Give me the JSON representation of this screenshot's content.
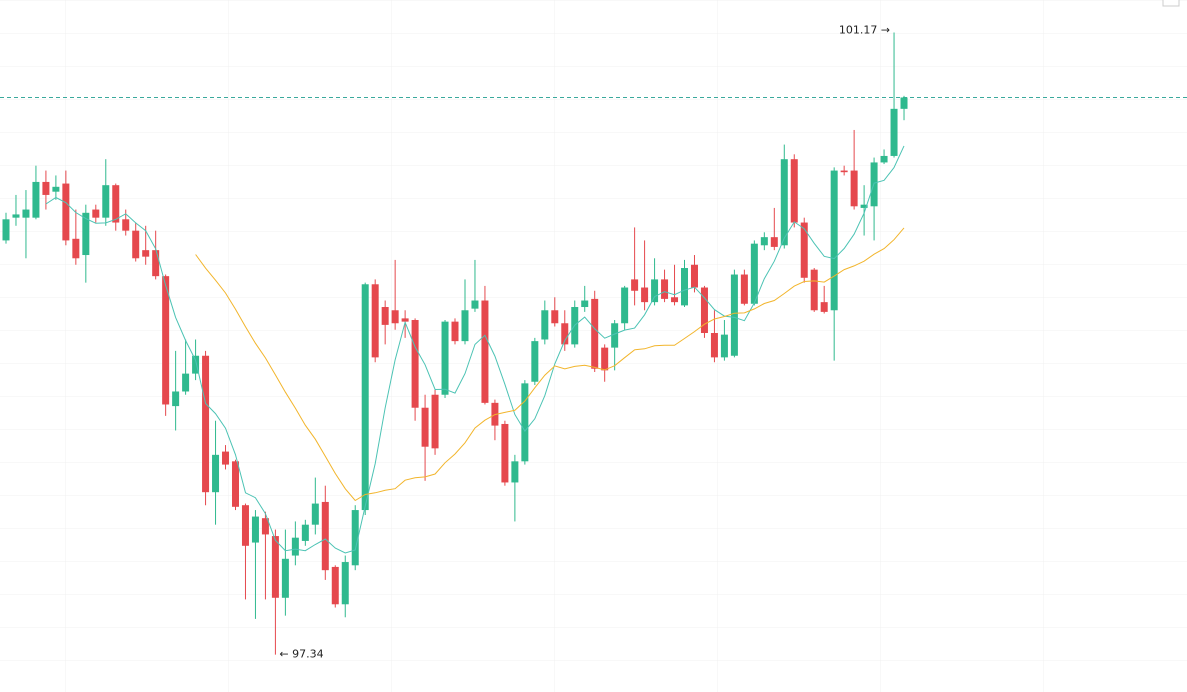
{
  "chart_data": {
    "type": "candlestick",
    "ylim": [
      97.11,
      101.37
    ],
    "up_color": "#2fb98e",
    "down_color": "#e5484d",
    "high_label": "101.17 →",
    "low_label": "← 97.34",
    "open": [
      99.89,
      100.03,
      100.03,
      100.03,
      100.25,
      100.19,
      100.24,
      99.9,
      99.8,
      100.08,
      100.03,
      100.23,
      100.02,
      99.95,
      99.83,
      99.83,
      99.67,
      98.87,
      98.96,
      99.07,
      99.18,
      98.34,
      98.59,
      98.53,
      98.26,
      98.03,
      98.18,
      98.07,
      97.69,
      97.95,
      98.04,
      98.14,
      98.28,
      97.88,
      97.65,
      97.89,
      98.23,
      99.62,
      99.48,
      99.46,
      99.41,
      99.4,
      98.86,
      98.94,
      98.94,
      99.39,
      99.27,
      99.47,
      99.52,
      98.89,
      98.76,
      98.4,
      98.53,
      99.02,
      99.28,
      99.46,
      99.38,
      99.25,
      99.48,
      99.53,
      99.23,
      99.23,
      99.38,
      99.65,
      99.6,
      99.51,
      99.65,
      99.54,
      99.49,
      99.74,
      99.6,
      99.32,
      99.17,
      99.18,
      99.68,
      99.5,
      99.86,
      99.91,
      99.86,
      100.39,
      100.0,
      99.71,
      99.51,
      99.46,
      100.32,
      100.32,
      100.09,
      100.1,
      100.37,
      100.41,
      100.7
    ],
    "high": [
      100.06,
      100.17,
      100.2,
      100.35,
      100.32,
      100.29,
      100.32,
      100.08,
      100.11,
      100.11,
      100.39,
      100.24,
      100.08,
      100.0,
      99.98,
      99.95,
      99.68,
      99.21,
      99.28,
      99.28,
      99.21,
      98.78,
      98.63,
      98.54,
      98.27,
      98.23,
      98.22,
      98.11,
      98.11,
      98.16,
      98.17,
      98.43,
      98.38,
      97.89,
      97.95,
      98.26,
      99.63,
      99.65,
      99.52,
      99.77,
      99.46,
      99.41,
      98.94,
      98.97,
      99.4,
      99.41,
      99.65,
      99.77,
      99.61,
      98.91,
      98.78,
      98.57,
      99.03,
      99.29,
      99.52,
      99.54,
      99.46,
      99.52,
      99.61,
      99.58,
      99.25,
      99.4,
      99.61,
      99.97,
      99.89,
      99.78,
      99.71,
      99.74,
      99.77,
      99.8,
      99.61,
      99.46,
      99.4,
      99.71,
      99.71,
      99.89,
      99.94,
      100.09,
      100.48,
      100.42,
      100.03,
      99.72,
      99.61,
      100.34,
      100.35,
      100.57,
      100.23,
      100.4,
      100.45,
      101.17,
      100.78
    ],
    "low": [
      99.87,
      99.98,
      99.78,
      100.02,
      100.08,
      100.14,
      99.86,
      99.74,
      99.63,
      100.0,
      99.98,
      99.95,
      99.92,
      99.76,
      99.74,
      99.65,
      98.81,
      98.72,
      98.94,
      99.03,
      98.26,
      98.14,
      98.48,
      98.23,
      97.68,
      97.56,
      97.68,
      97.34,
      97.58,
      97.89,
      98.01,
      98.08,
      97.8,
      97.63,
      97.57,
      97.86,
      98.2,
      99.14,
      99.25,
      99.34,
      99.29,
      98.78,
      98.41,
      98.57,
      98.92,
      99.25,
      99.25,
      99.45,
      98.88,
      98.66,
      98.38,
      98.16,
      98.51,
      99.0,
      99.25,
      99.36,
      99.21,
      99.23,
      99.45,
      99.08,
      99.02,
      99.09,
      99.34,
      99.49,
      99.46,
      99.49,
      99.51,
      99.49,
      99.48,
      99.57,
      99.29,
      99.14,
      99.15,
      99.17,
      99.49,
      99.49,
      99.83,
      99.83,
      99.84,
      99.97,
      99.63,
      99.45,
      99.44,
      99.15,
      100.29,
      100.08,
      99.92,
      99.89,
      100.36,
      100.4,
      100.63
    ],
    "close": [
      100.02,
      100.05,
      100.08,
      100.25,
      100.17,
      100.22,
      99.89,
      99.78,
      100.06,
      100.03,
      100.23,
      100.0,
      99.95,
      99.78,
      99.79,
      99.67,
      98.88,
      98.96,
      99.07,
      99.18,
      98.34,
      98.57,
      98.51,
      98.25,
      98.01,
      98.19,
      98.08,
      97.69,
      97.93,
      98.06,
      98.14,
      98.27,
      97.86,
      97.65,
      97.91,
      98.23,
      99.62,
      99.17,
      99.37,
      99.38,
      99.39,
      98.86,
      98.62,
      98.61,
      99.39,
      99.27,
      99.46,
      99.52,
      98.89,
      98.75,
      98.4,
      98.53,
      99.01,
      99.27,
      99.46,
      99.38,
      99.25,
      99.48,
      99.52,
      99.1,
      99.09,
      99.38,
      99.6,
      99.58,
      99.51,
      99.65,
      99.53,
      99.51,
      99.72,
      99.6,
      99.32,
      99.17,
      99.31,
      99.68,
      99.5,
      99.87,
      99.91,
      99.85,
      100.39,
      100.0,
      99.66,
      99.46,
      99.45,
      100.32,
      100.31,
      100.1,
      100.11,
      100.37,
      100.41,
      100.7,
      100.77
    ],
    "ma_fast_color": "#4cc3b4",
    "ma_slow_color": "#f2b52c",
    "last_line_color": "#3aa99c"
  }
}
